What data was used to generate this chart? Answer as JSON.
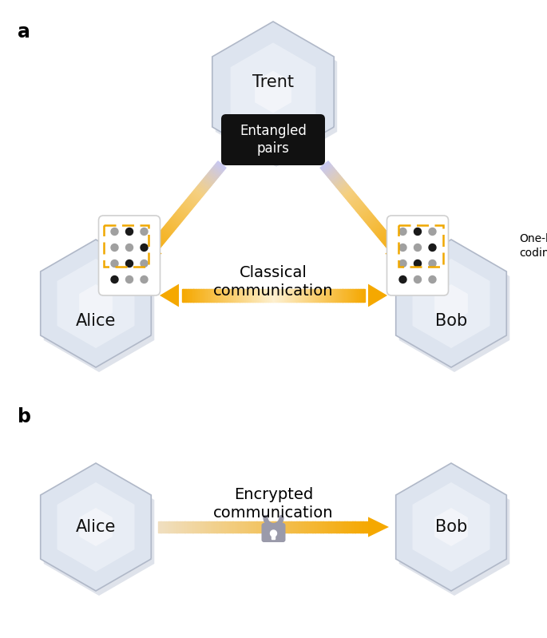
{
  "bg_color": "#ffffff",
  "hex_fill_light": "#e8edf5",
  "hex_fill_dark": "#c8d0de",
  "hex_edge": "#b0b8c8",
  "label_a": "a",
  "label_b": "b",
  "trent_label": "Trent",
  "alice_label": "Alice",
  "bob_label": "Bob",
  "entangled_label": "Entangled\npairs",
  "classical_label": "Classical\ncommunication",
  "encrypted_label": "Encrypted\ncommunication",
  "one_hot_label": "One-hot\ncoding",
  "arrow_color": "#f5a800",
  "arrow_pale": "#fdf0d0",
  "phone_fill": "#ffffff",
  "phone_edge": "#cccccc",
  "dashed_color": "#f0a800",
  "entangled_bg": "#111111",
  "entangled_text": "#ffffff",
  "shadow_color": "#c0c8d8",
  "lavender": "#c8c8f0"
}
